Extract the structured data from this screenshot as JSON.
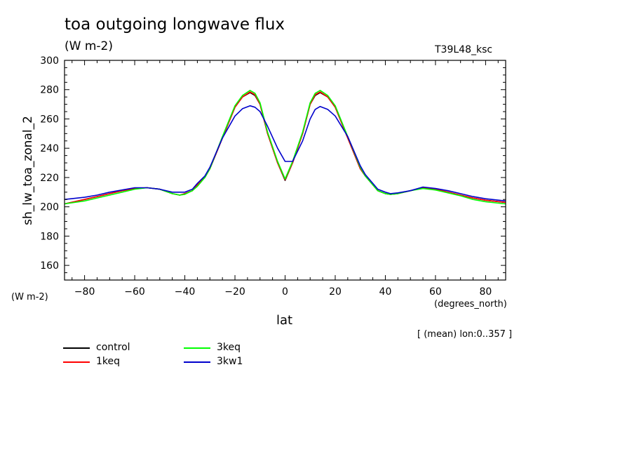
{
  "header": {
    "title": "toa outgoing longwave flux",
    "units": "(W m-2)",
    "run_tag": "T39L48_ksc"
  },
  "footer": {
    "y_units": "(W m-2)",
    "x_units": "(degrees_north)",
    "note": "[ (mean) lon:0..357 ]"
  },
  "chart_data": {
    "type": "line",
    "xlabel": "lat",
    "ylabel": "sh_lw_toa_zonal_2",
    "xlim": [
      -88,
      88
    ],
    "ylim": [
      150,
      300
    ],
    "xticks": [
      "-80",
      "-60",
      "-40",
      "-20",
      "0",
      "20",
      "40",
      "60",
      "80"
    ],
    "yticks": [
      "160",
      "180",
      "200",
      "220",
      "240",
      "260",
      "280",
      "300"
    ],
    "grid": false,
    "legend_position": "bottom-left",
    "x": [
      -88,
      -80,
      -75,
      -70,
      -65,
      -60,
      -55,
      -50,
      -45,
      -42,
      -40,
      -37,
      -35,
      -32,
      -30,
      -25,
      -20,
      -17,
      -14,
      -12,
      -10,
      -7,
      -3,
      0,
      3,
      7,
      10,
      12,
      14,
      17,
      20,
      25,
      30,
      32,
      35,
      37,
      40,
      42,
      45,
      50,
      55,
      60,
      65,
      70,
      75,
      80,
      88
    ],
    "series": [
      {
        "name": "control",
        "color": "#000000",
        "values": [
          202,
          205,
          207,
          209,
          211,
          212.5,
          213,
          212,
          209,
          208,
          209,
          211,
          215,
          220,
          226,
          247,
          268,
          275,
          278,
          276,
          270,
          250,
          230,
          218,
          230,
          250,
          270,
          276,
          278,
          275,
          268,
          247,
          226,
          221,
          215,
          211,
          209,
          208.5,
          209,
          211,
          213,
          212,
          210,
          208,
          206,
          204.5,
          203
        ]
      },
      {
        "name": "1keq",
        "color": "#ff0000",
        "values": [
          202,
          205,
          207,
          209,
          211,
          212.5,
          213,
          212,
          209,
          208,
          209,
          211,
          215,
          220,
          226,
          247,
          268,
          275,
          278.5,
          276.5,
          270,
          250,
          230,
          218.5,
          230,
          250,
          270,
          276.5,
          278.5,
          275,
          268,
          247,
          226,
          221,
          215,
          211,
          209,
          208.5,
          209,
          211,
          213,
          212,
          210,
          208,
          206,
          204.5,
          203
        ]
      },
      {
        "name": "3keq",
        "color": "#00ff00",
        "values": [
          202,
          204,
          206,
          208,
          210,
          212,
          213,
          212,
          209,
          208,
          208.5,
          211,
          214,
          220,
          226,
          248,
          269,
          276,
          279.5,
          277.5,
          271,
          251,
          231,
          219,
          231,
          251,
          271,
          277.5,
          279.5,
          276,
          269,
          248,
          227,
          221,
          215,
          211,
          209,
          208.5,
          209,
          211,
          212.5,
          211.5,
          209.5,
          207.5,
          205,
          203.5,
          202
        ]
      },
      {
        "name": "3kw1",
        "color": "#0000cc",
        "values": [
          205,
          206.5,
          208,
          210,
          211.5,
          213,
          213,
          212,
          210,
          210,
          210,
          212,
          216,
          221,
          227,
          247,
          262,
          267,
          269,
          268,
          265,
          255,
          240,
          231,
          231,
          245,
          260,
          266.5,
          268.5,
          266.5,
          262,
          248,
          228,
          222,
          216,
          212,
          210,
          209,
          209.5,
          211,
          213.5,
          212.5,
          211,
          209,
          207,
          205.5,
          204
        ]
      }
    ]
  }
}
